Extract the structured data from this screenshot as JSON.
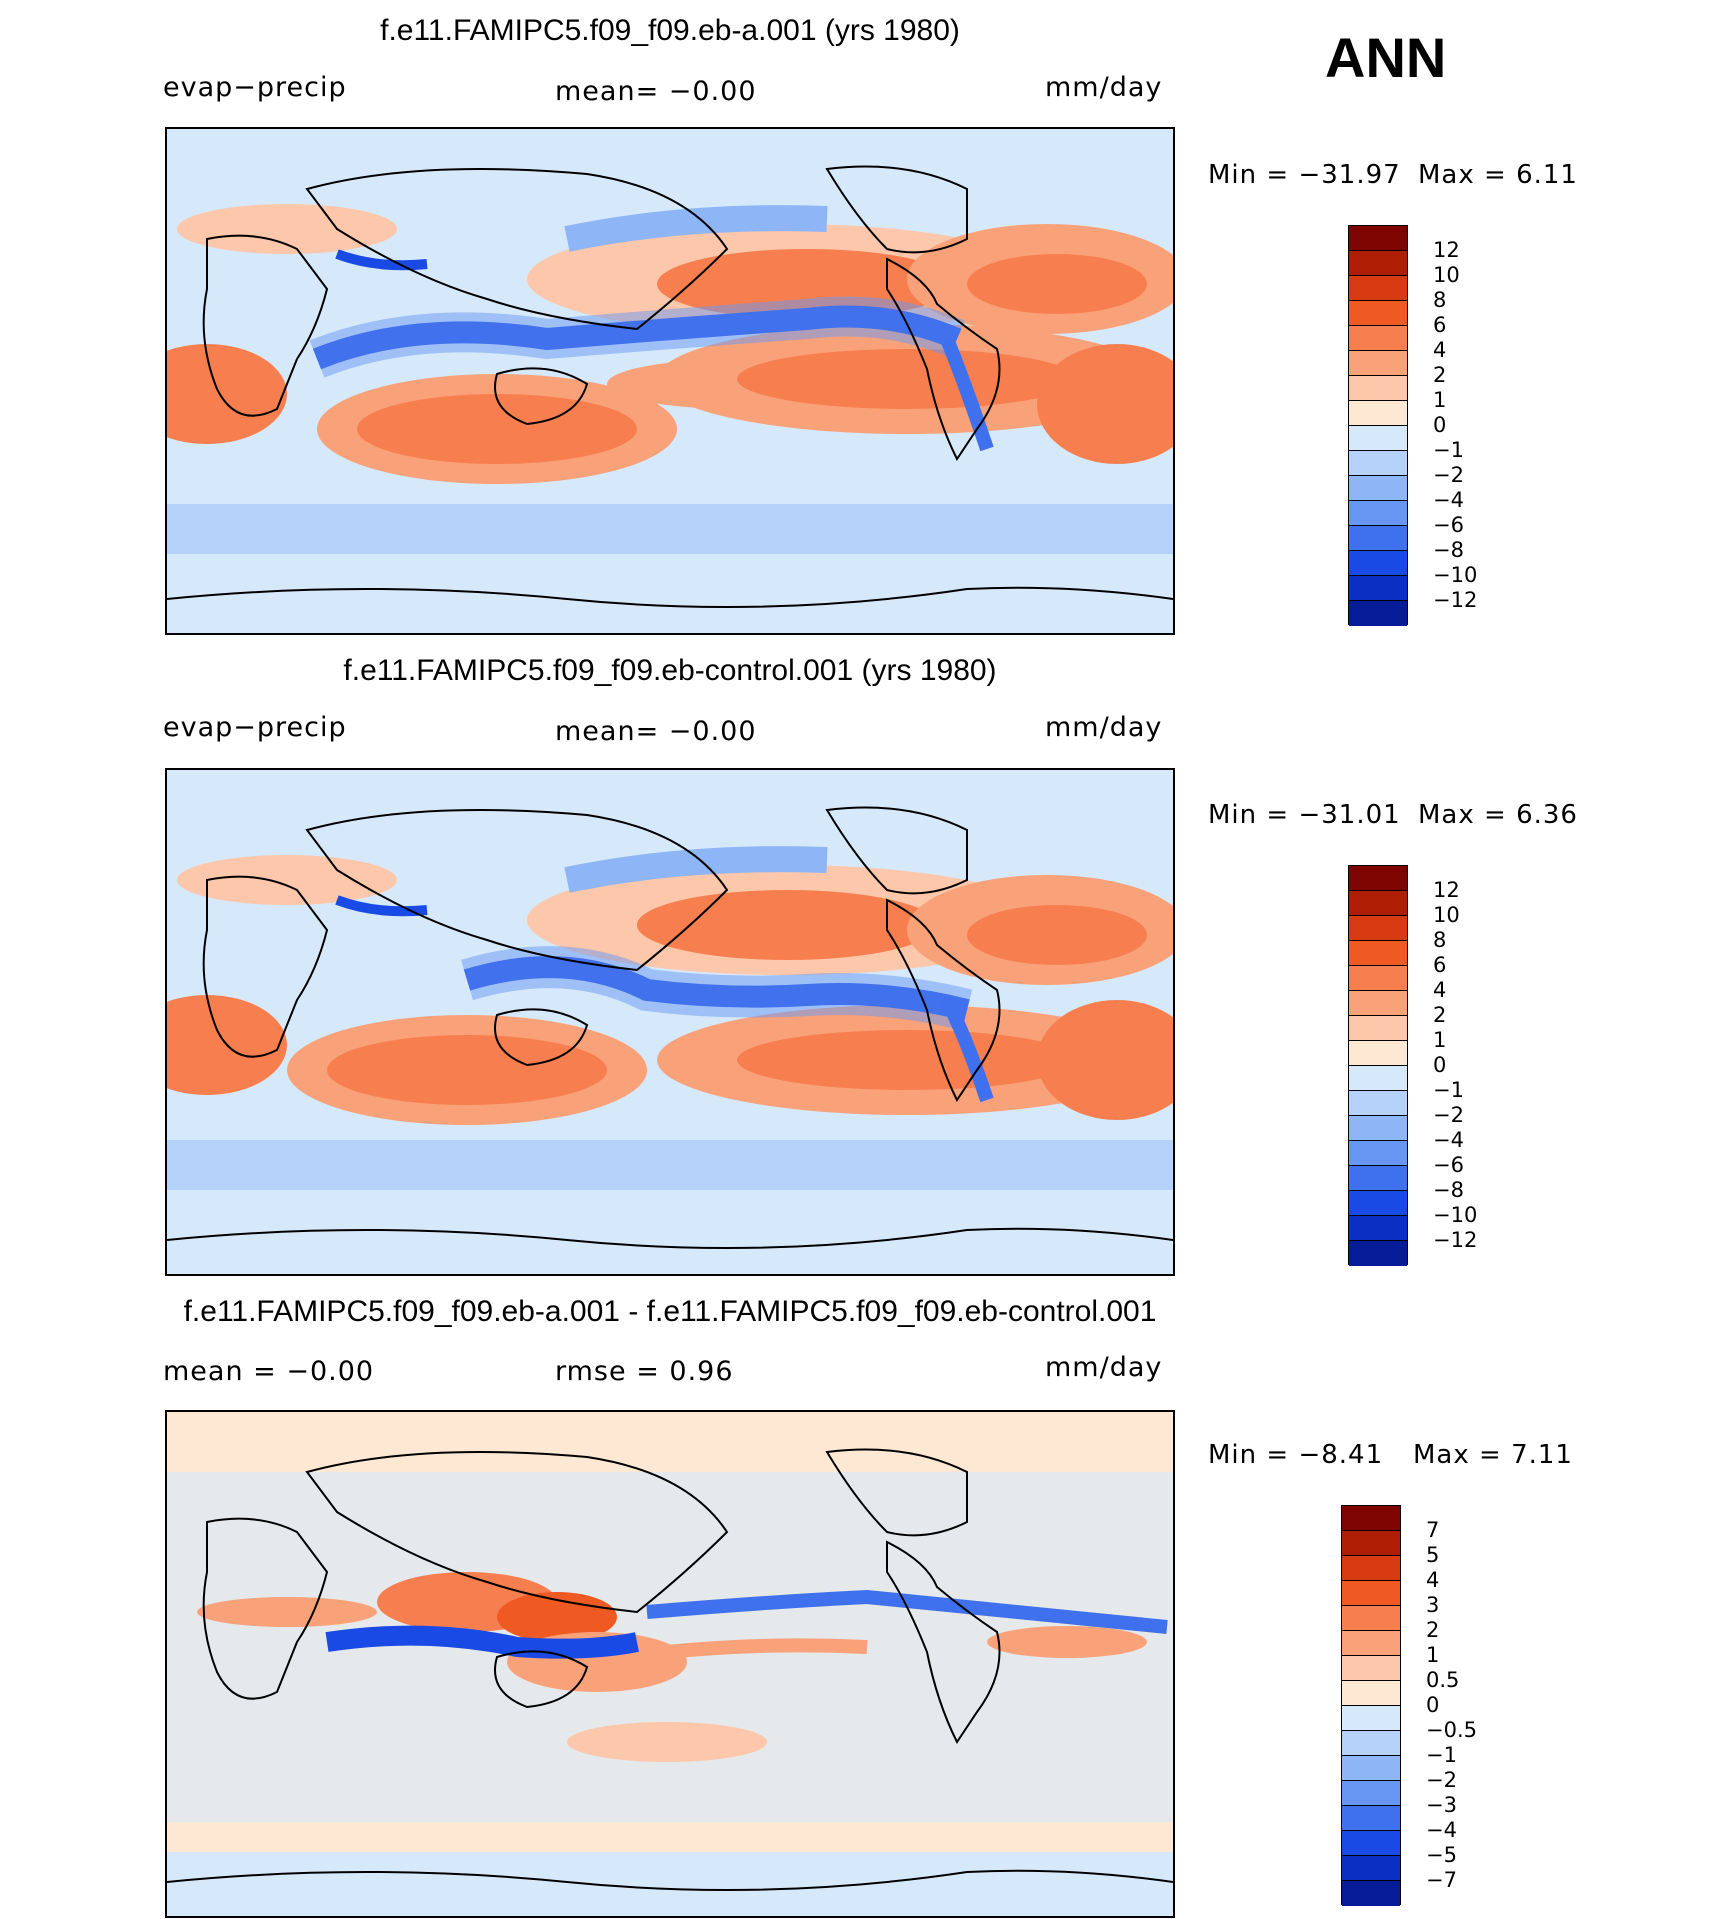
{
  "header": {
    "season": "ANN"
  },
  "palettes": {
    "main": [
      "#7e0402",
      "#b01d05",
      "#d73a10",
      "#ef5a22",
      "#f77f4f",
      "#f9a27a",
      "#fcc7aa",
      "#fde8d3",
      "#d6e9fb",
      "#b3d1f9",
      "#8eb5f5",
      "#6897f3",
      "#3f71ee",
      "#1a4ae6",
      "#0c2fc3",
      "#051b98"
    ],
    "diff": [
      "#7e0402",
      "#b01d05",
      "#d73a10",
      "#ef5a22",
      "#f77f4f",
      "#f9a27a",
      "#fcc7aa",
      "#fde8d3",
      "#d6e9fb",
      "#b3d1f9",
      "#8eb5f5",
      "#6897f3",
      "#3f71ee",
      "#1a4ae6",
      "#0c2fc3",
      "#051b98"
    ]
  },
  "panels": [
    {
      "title": "f.e11.FAMIPC5.f09_f09.eb-a.001 (yrs 1980)",
      "left_label": "evap−precip",
      "mean_label": "mean=   −0.00",
      "units": "mm/day",
      "min_label": "Min  =  −31.97",
      "max_label": "Max  =     6.11",
      "ticks": [
        "12",
        "10",
        "8",
        "6",
        "4",
        "2",
        "1",
        "0",
        "−1",
        "−2",
        "−4",
        "−6",
        "−8",
        "−10",
        "−12"
      ]
    },
    {
      "title": "f.e11.FAMIPC5.f09_f09.eb-control.001 (yrs 1980)",
      "left_label": "evap−precip",
      "mean_label": "mean=   −0.00",
      "units": "mm/day",
      "min_label": "Min  =  −31.01",
      "max_label": "Max  =     6.36",
      "ticks": [
        "12",
        "10",
        "8",
        "6",
        "4",
        "2",
        "1",
        "0",
        "−1",
        "−2",
        "−4",
        "−6",
        "−8",
        "−10",
        "−12"
      ]
    },
    {
      "title": "f.e11.FAMIPC5.f09_f09.eb-a.001 - f.e11.FAMIPC5.f09_f09.eb-control.001",
      "left_label": "mean  =   −0.00",
      "mean_label": "rmse  =     0.96",
      "units": "mm/day",
      "min_label": "Min  =   −8.41",
      "max_label": "Max  =     7.11",
      "ticks": [
        "7",
        "5",
        "4",
        "3",
        "2",
        "1",
        "0.5",
        "0",
        "−0.5",
        "−1",
        "−2",
        "−3",
        "−4",
        "−5",
        "−7"
      ]
    }
  ]
}
